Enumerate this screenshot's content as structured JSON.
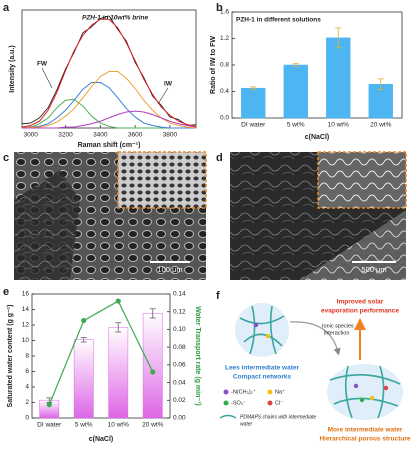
{
  "chart_data": [
    {
      "type": "line",
      "panel_label": "a",
      "title": "PZH-1 in 10wt% brine",
      "x_label": "Raman shift (cm⁻¹)",
      "y_label": "Intensity (a.u.)",
      "annotations": [
        "FW",
        "IW"
      ],
      "x": [
        2950,
        3000,
        3050,
        3100,
        3150,
        3200,
        3250,
        3300,
        3350,
        3400,
        3450,
        3500,
        3550,
        3600,
        3650,
        3700,
        3750,
        3800,
        3850,
        3900,
        3950
      ],
      "xlim": [
        2950,
        3950
      ],
      "xticks": [
        3000,
        3200,
        3400,
        3600,
        3800
      ],
      "ylim": [
        0,
        1.4
      ],
      "series": [
        {
          "color": "#111111",
          "values": [
            0.05,
            0.06,
            0.12,
            0.24,
            0.45,
            0.7,
            0.9,
            1.13,
            1.2,
            1.3,
            1.33,
            1.17,
            1.03,
            0.78,
            0.6,
            0.38,
            0.27,
            0.13,
            0.1,
            0.03,
            0.04
          ]
        },
        {
          "color": "#4caf50",
          "values": [
            0.0,
            0.01,
            0.05,
            0.12,
            0.24,
            0.33,
            0.34,
            0.26,
            0.14,
            0.06,
            0.02,
            0.0,
            0.0,
            0.0,
            0.0,
            0.0,
            0.0,
            0.0,
            0.0,
            0.0,
            0.0
          ]
        },
        {
          "color": "#3d7fd9",
          "values": [
            0.0,
            0.01,
            0.02,
            0.05,
            0.12,
            0.21,
            0.33,
            0.46,
            0.54,
            0.54,
            0.48,
            0.36,
            0.23,
            0.13,
            0.06,
            0.03,
            0.01,
            0.0,
            0.0,
            0.0,
            0.0
          ]
        },
        {
          "color": "#f0a030",
          "values": [
            0.0,
            0.01,
            0.01,
            0.03,
            0.07,
            0.14,
            0.23,
            0.36,
            0.49,
            0.61,
            0.67,
            0.67,
            0.59,
            0.47,
            0.33,
            0.21,
            0.12,
            0.06,
            0.03,
            0.01,
            0.0
          ]
        },
        {
          "color": "#b040c0",
          "values": [
            0.0,
            0.0,
            0.0,
            0.0,
            0.0,
            0.01,
            0.01,
            0.03,
            0.05,
            0.08,
            0.12,
            0.16,
            0.19,
            0.2,
            0.19,
            0.16,
            0.12,
            0.08,
            0.05,
            0.03,
            0.01
          ]
        },
        {
          "color": "#e02020",
          "values": [
            0.01,
            0.03,
            0.08,
            0.21,
            0.42,
            0.68,
            0.92,
            1.1,
            1.22,
            1.29,
            1.29,
            1.19,
            1.01,
            0.8,
            0.58,
            0.4,
            0.25,
            0.15,
            0.08,
            0.04,
            0.02
          ]
        }
      ]
    },
    {
      "type": "bar",
      "panel_label": "b",
      "title": "PZH-1 in different solutions",
      "x_label": "c(NaCl)",
      "y_label": "Ratio of IW to FW",
      "categories": [
        "DI water",
        "5 wt%",
        "10 wt%",
        "20 wt%"
      ],
      "ylim": [
        0,
        1.6
      ],
      "yticks": [
        {
          "value": 0,
          "label": "0.0"
        },
        0.4,
        0.8,
        1.2,
        1.6
      ],
      "series": [
        {
          "color": "#4db6f2",
          "values": [
            0.45,
            0.8,
            1.21,
            0.51
          ],
          "errors": [
            0.02,
            0.02,
            0.15,
            0.08
          ]
        }
      ]
    },
    {
      "type": "bar",
      "panel_label": "e",
      "x_label": "c(NaCl)",
      "y_label": "Saturated water content (g g⁻¹)",
      "y2_label": "Water Transport rate (g min⁻¹)",
      "categories": [
        "DI water",
        "5 wt%",
        "10 wt%",
        "20 wt%"
      ],
      "ylim": [
        0,
        16
      ],
      "yticks": [
        0,
        2,
        4,
        6,
        8,
        10,
        12,
        14,
        16
      ],
      "y2lim": [
        0,
        0.14
      ],
      "y2ticks": [
        {
          "value": 0,
          "label": "0.00"
        },
        0.02,
        0.04,
        0.06,
        0.08,
        {
          "value": 0.1,
          "label": "0.10"
        },
        0.12,
        0.14
      ],
      "series": [
        {
          "color": "#dd66e6",
          "values": [
            2.3,
            10.1,
            11.7,
            13.5
          ],
          "errors": [
            0.3,
            0.3,
            0.6,
            0.6
          ]
        },
        {
          "type": "line",
          "axis": "y2",
          "color": "#3caa50",
          "values": [
            0.015,
            0.11,
            0.132,
            0.052
          ]
        }
      ]
    }
  ],
  "sem_images": [
    {
      "panel_label": "c",
      "scale_bar": "100 μm"
    },
    {
      "panel_label": "d",
      "scale_bar": "500 μm"
    }
  ],
  "schematic": {
    "panel_label": "f",
    "top_label": [
      "Improved solar",
      "evaporation performance"
    ],
    "arrow_label": [
      "Ionic species",
      "interaction"
    ],
    "left_caption": [
      "Lees intermediate water",
      "Compact networks"
    ],
    "right_caption": [
      "More intermediate water",
      "Hierarchical porous structure"
    ],
    "legend": [
      "-N(CH₃)₂⁺",
      "Na⁺",
      "-SO₃⁻",
      "Cl⁻",
      "PDMAPS chains with intermediate",
      "water"
    ]
  }
}
